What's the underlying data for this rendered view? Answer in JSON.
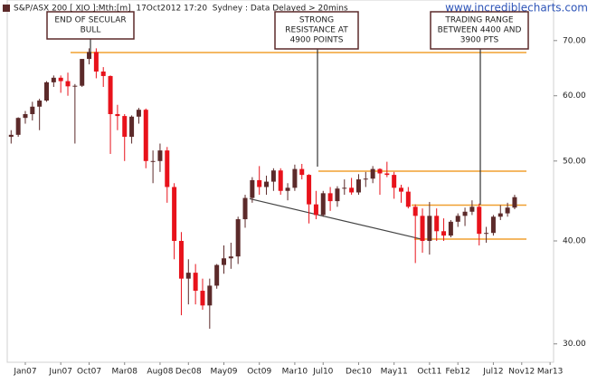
{
  "chart_data": {
    "type": "candlestick",
    "title": "S&P/ASX 200 [ XJO ]:Mth:[m]  17Oct2012 17:20  Sydney : Data Delayed > 20mins",
    "watermark": "www.incrediblecharts.com",
    "categories": [
      null,
      null,
      "Jan07",
      null,
      null,
      null,
      null,
      "Jun07",
      null,
      null,
      null,
      "Oct07",
      null,
      null,
      null,
      null,
      "Mar08",
      null,
      null,
      null,
      null,
      "Aug08",
      null,
      null,
      null,
      "Dec08",
      null,
      null,
      null,
      null,
      "May09",
      null,
      null,
      null,
      null,
      "Oct09",
      null,
      null,
      null,
      null,
      "Mar10",
      null,
      null,
      null,
      "Jul10",
      null,
      null,
      null,
      null,
      "Dec10",
      null,
      null,
      null,
      null,
      "May11",
      null,
      null,
      null,
      null,
      "Oct11",
      null,
      null,
      null,
      "Feb12",
      null,
      null,
      null,
      null,
      "Jul12",
      null,
      null,
      null,
      "Nov12",
      null,
      null,
      null,
      "Mar13"
    ],
    "open": [
      53.5,
      53.8,
      56.4,
      57.0,
      58.2,
      59.2,
      62.3,
      63.1,
      62.5,
      61.6,
      61.7,
      66.5,
      67.8,
      64.2,
      63.4,
      57.0,
      56.7,
      53.5,
      56.6,
      57.7,
      50.0,
      50.0,
      51.5,
      46.5,
      40.0,
      36.0,
      36.6,
      34.8,
      33.4,
      35.3,
      37.4,
      38.1,
      38.3,
      42.5,
      45.1,
      47.4,
      46.5,
      47.2,
      48.7,
      46.0,
      46.4,
      48.9,
      48.1,
      44.3,
      43.0,
      45.7,
      44.7,
      46.3,
      46.4,
      45.8,
      47.5,
      47.6,
      48.9,
      48.3,
      48.1,
      46.4,
      45.9,
      44.0,
      42.9,
      40.0,
      42.9,
      41.1,
      40.6,
      42.2,
      42.9,
      43.4,
      44.0,
      40.8,
      40.9,
      42.8,
      43.2,
      43.9,
      null,
      null,
      null,
      null,
      null
    ],
    "high": [
      54.5,
      56.5,
      57.5,
      59.0,
      59.5,
      62.5,
      63.5,
      63.5,
      64.0,
      62.0,
      66.5,
      68.5,
      68.5,
      65.0,
      63.5,
      58.5,
      57.0,
      56.8,
      58.0,
      57.9,
      51.5,
      52.5,
      52.0,
      47.0,
      41.0,
      38.0,
      37.5,
      36.0,
      36.0,
      37.5,
      39.5,
      39.8,
      42.8,
      45.5,
      47.8,
      49.3,
      48.0,
      49.0,
      49.0,
      47.0,
      49.5,
      49.6,
      48.2,
      46.0,
      46.0,
      46.5,
      46.6,
      47.5,
      47.7,
      48.2,
      48.5,
      49.3,
      49.0,
      49.9,
      48.5,
      46.8,
      46.5,
      44.3,
      43.8,
      44.6,
      43.8,
      42.6,
      42.4,
      43.2,
      43.9,
      44.8,
      44.4,
      41.6,
      43.0,
      44.2,
      44.5,
      45.5,
      null,
      null,
      null,
      null,
      null
    ],
    "low": [
      52.5,
      53.5,
      55.5,
      56.0,
      54.5,
      59.0,
      61.5,
      60.5,
      60.0,
      52.5,
      61.5,
      65.5,
      63.0,
      61.5,
      51.0,
      54.5,
      50.0,
      52.5,
      55.5,
      49.0,
      47.0,
      48.5,
      44.5,
      38.0,
      32.5,
      33.5,
      33.5,
      33.0,
      31.3,
      35.0,
      36.5,
      37.0,
      37.5,
      41.5,
      44.5,
      45.5,
      45.5,
      46.0,
      45.5,
      44.8,
      46.0,
      47.5,
      42.0,
      42.5,
      42.8,
      43.5,
      44.0,
      45.5,
      45.5,
      45.5,
      46.5,
      47.0,
      45.5,
      47.8,
      45.0,
      44.5,
      43.8,
      37.6,
      38.7,
      38.5,
      40.0,
      40.0,
      40.4,
      41.6,
      41.7,
      43.0,
      39.5,
      39.8,
      40.6,
      42.4,
      42.8,
      43.7,
      null,
      null,
      null,
      null,
      null
    ],
    "close": [
      53.8,
      56.4,
      57.0,
      58.2,
      59.2,
      62.3,
      63.1,
      62.5,
      61.6,
      61.7,
      66.5,
      67.8,
      64.2,
      63.4,
      57.0,
      56.7,
      53.5,
      56.6,
      57.7,
      50.0,
      50.0,
      51.5,
      46.5,
      40.0,
      36.0,
      36.6,
      34.8,
      33.4,
      35.3,
      37.4,
      38.1,
      38.3,
      42.5,
      45.1,
      47.4,
      46.5,
      47.2,
      48.7,
      46.0,
      46.4,
      48.9,
      48.1,
      44.3,
      43.0,
      45.7,
      44.7,
      46.3,
      46.4,
      45.8,
      47.5,
      47.6,
      48.9,
      48.3,
      48.1,
      46.4,
      45.9,
      44.0,
      42.9,
      40.0,
      42.9,
      41.1,
      40.6,
      42.2,
      42.9,
      43.4,
      44.0,
      40.8,
      40.9,
      42.8,
      43.2,
      43.9,
      45.2,
      null,
      null,
      null,
      null,
      null
    ],
    "up_color": "#5c2a2a",
    "down_color": "#e8121b",
    "log_scale": true,
    "ylim": [
      28.5,
      78.4
    ],
    "yticks": [
      {
        "value": 30,
        "label": "30.00"
      },
      {
        "value": 40,
        "label": "40.00"
      },
      {
        "value": 50,
        "label": "50.00"
      },
      {
        "value": 60,
        "label": "60.00"
      },
      {
        "value": 70,
        "label": "70.00"
      }
    ],
    "reference_lines": [
      {
        "value": 67.7,
        "color": "#f0a030"
      },
      {
        "value": 48.6,
        "color": "#f0a030"
      },
      {
        "value": 44.2,
        "color": "#f0a030"
      },
      {
        "value": 40.2,
        "color": "#f0a030"
      }
    ],
    "trendline": {
      "values": [
        45.0,
        40.2
      ],
      "color": "#444444"
    },
    "annotations": [
      {
        "lines": [
          "END OF SECULAR",
          "BULL"
        ]
      },
      {
        "lines": [
          "STRONG",
          "RESISTANCE AT",
          "4900 POINTS"
        ]
      },
      {
        "lines": [
          "TRADING RANGE",
          "BETWEEN 4400 AND",
          "3900 PTS"
        ]
      }
    ]
  }
}
